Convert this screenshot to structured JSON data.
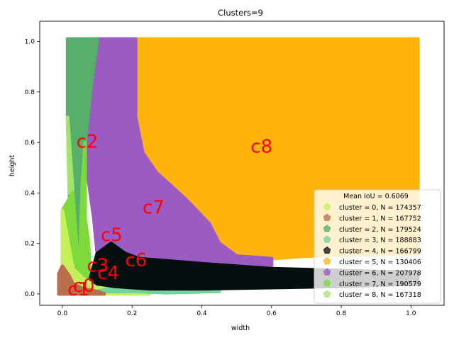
{
  "chart_data": {
    "type": "scatter",
    "title": "Clusters=9",
    "xlabel": "width",
    "ylabel": "height",
    "xlim": [
      -0.065,
      1.095
    ],
    "ylim": [
      -0.045,
      1.08
    ],
    "xticks": [
      "0.0",
      "0.2",
      "0.4",
      "0.6",
      "0.8",
      "1.0"
    ],
    "yticks": [
      "0.0",
      "0.2",
      "0.4",
      "0.6",
      "0.8",
      "1.0"
    ],
    "grid": false,
    "legend_position": "lower-right",
    "legend_title": "Mean IoU = 0.6069",
    "series": [
      {
        "name": "cluster = 0, N = 174357",
        "color": "#c6f05a",
        "marker": "pentagon",
        "region": [
          [
            0.0,
            0.0
          ],
          [
            0.0,
            0.33
          ],
          [
            0.03,
            0.1
          ],
          [
            0.06,
            0.06
          ],
          [
            0.1,
            0.04
          ],
          [
            0.2,
            0.02
          ],
          [
            0.25,
            0.0
          ]
        ],
        "centroid": [
          0.03,
          0.03
        ],
        "label": "c0"
      },
      {
        "name": "cluster = 1, N = 167752",
        "color": "#b86e4a",
        "marker": "pentagon",
        "region": [
          [
            -0.01,
            0.0
          ],
          [
            -0.01,
            0.08
          ],
          [
            0.0,
            0.11
          ],
          [
            0.02,
            0.07
          ],
          [
            0.03,
            0.04
          ],
          [
            0.06,
            0.02
          ],
          [
            0.1,
            0.01
          ],
          [
            0.12,
            0.0
          ]
        ],
        "centroid": [
          0.015,
          0.015
        ],
        "label": "c1"
      },
      {
        "name": "cluster = 2, N = 179524",
        "color": "#58ae6b",
        "marker": "pentagon",
        "region": [
          [
            0.015,
            1.01
          ],
          [
            0.1,
            1.01
          ],
          [
            0.08,
            0.8
          ],
          [
            0.065,
            0.6
          ],
          [
            0.058,
            0.45
          ],
          [
            0.054,
            0.3
          ],
          [
            0.052,
            0.2
          ],
          [
            0.045,
            0.12
          ],
          [
            0.03,
            0.14
          ],
          [
            0.02,
            0.4
          ],
          [
            0.015,
            0.7
          ]
        ],
        "centroid": [
          0.04,
          0.6
        ],
        "label": "c2"
      },
      {
        "name": "cluster = 3, N = 188883",
        "color": "#72d3a0",
        "marker": "pentagon",
        "region": [
          [
            0.1,
            0.01
          ],
          [
            0.2,
            0.01
          ],
          [
            0.3,
            0.005
          ],
          [
            0.45,
            0.01
          ],
          [
            0.45,
            0.015
          ],
          [
            0.3,
            0.02
          ],
          [
            0.15,
            0.025
          ]
        ],
        "centroid": [
          0.07,
          0.11
        ],
        "label": "c3"
      },
      {
        "name": "cluster = 4, N = 166799",
        "color": "#060f0f",
        "marker": "pentagon",
        "region": [
          [
            0.08,
            0.06
          ],
          [
            0.1,
            0.16
          ],
          [
            0.14,
            0.2
          ],
          [
            0.18,
            0.16
          ],
          [
            0.22,
            0.14
          ],
          [
            0.4,
            0.12
          ],
          [
            0.6,
            0.1
          ],
          [
            1.02,
            0.085
          ],
          [
            1.02,
            0.04
          ],
          [
            0.8,
            0.03
          ],
          [
            0.6,
            0.025
          ],
          [
            0.4,
            0.02
          ],
          [
            0.25,
            0.02
          ],
          [
            0.15,
            0.03
          ],
          [
            0.1,
            0.04
          ]
        ],
        "centroid": [
          0.1,
          0.08
        ],
        "label": "c4"
      },
      {
        "name": "cluster = 5, N = 130406",
        "color": "#ffb30d",
        "marker": "pentagon",
        "region": [
          [
            0.21,
            1.01
          ],
          [
            1.02,
            1.01
          ],
          [
            1.02,
            0.16
          ],
          [
            0.7,
            0.15
          ],
          [
            0.6,
            0.14
          ],
          [
            0.5,
            0.15
          ],
          [
            0.45,
            0.2
          ],
          [
            0.42,
            0.28
          ],
          [
            0.35,
            0.38
          ],
          [
            0.27,
            0.48
          ],
          [
            0.23,
            0.56
          ],
          [
            0.21,
            0.7
          ]
        ],
        "centroid": [
          0.11,
          0.23
        ],
        "label": "c5"
      },
      {
        "name": "cluster = 6, N = 207978",
        "color": "#9b5bc2",
        "marker": "pentagon",
        "region": [
          [
            0.06,
            1.01
          ],
          [
            0.21,
            1.01
          ],
          [
            0.21,
            0.7
          ],
          [
            0.23,
            0.56
          ],
          [
            0.27,
            0.48
          ],
          [
            0.35,
            0.38
          ],
          [
            0.42,
            0.28
          ],
          [
            0.45,
            0.2
          ],
          [
            0.5,
            0.15
          ],
          [
            0.6,
            0.14
          ],
          [
            0.6,
            0.1
          ],
          [
            0.4,
            0.12
          ],
          [
            0.22,
            0.14
          ],
          [
            0.18,
            0.16
          ],
          [
            0.14,
            0.2
          ],
          [
            0.1,
            0.16
          ],
          [
            0.09,
            0.3
          ],
          [
            0.075,
            0.45
          ],
          [
            0.065,
            0.65
          ],
          [
            0.06,
            0.85
          ]
        ],
        "centroid": [
          0.18,
          0.13
        ],
        "label": "c6"
      },
      {
        "name": "cluster = 7, N = 190579",
        "color": "#7ed93a",
        "marker": "pentagon",
        "region": [
          [
            0.0,
            0.33
          ],
          [
            0.03,
            0.4
          ],
          [
            0.045,
            0.12
          ],
          [
            0.052,
            0.2
          ],
          [
            0.054,
            0.3
          ],
          [
            0.058,
            0.45
          ],
          [
            0.065,
            0.6
          ],
          [
            0.065,
            0.3
          ],
          [
            0.075,
            0.2
          ],
          [
            0.08,
            0.06
          ],
          [
            0.1,
            0.04
          ],
          [
            0.06,
            0.06
          ],
          [
            0.03,
            0.1
          ]
        ],
        "centroid": [
          0.23,
          0.34
        ],
        "label": "c7"
      },
      {
        "name": "cluster = 8, N = 167318",
        "color": "#a1e46d",
        "marker": "pentagon",
        "region": [
          [
            0.015,
            0.7
          ],
          [
            0.02,
            0.4
          ],
          [
            0.03,
            0.4
          ],
          [
            0.02,
            0.6
          ]
        ],
        "centroid": [
          0.54,
          0.58
        ],
        "label": "c8"
      }
    ]
  }
}
